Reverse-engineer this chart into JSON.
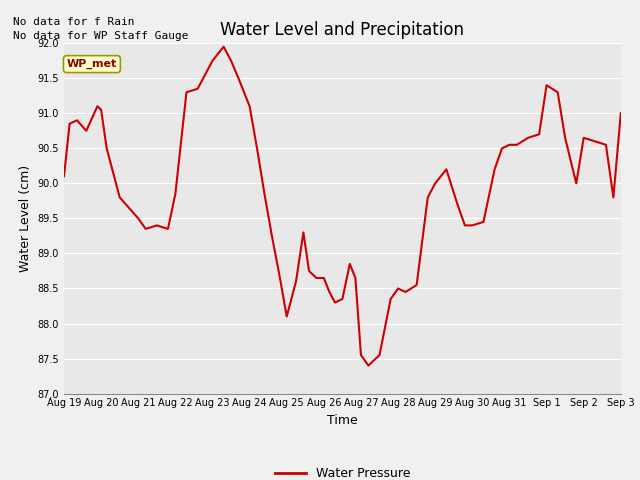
{
  "title": "Water Level and Precipitation",
  "xlabel": "Time",
  "ylabel": "Water Level (cm)",
  "ylim": [
    87.0,
    92.0
  ],
  "yticks": [
    87.0,
    87.5,
    88.0,
    88.5,
    89.0,
    89.5,
    90.0,
    90.5,
    91.0,
    91.5,
    92.0
  ],
  "fig_bg": "#f0f0f0",
  "axes_bg": "#e8e8e8",
  "line_color": "#cc0000",
  "line_width": 1.5,
  "annotation_text1": "No data for f Rain",
  "annotation_text2": "No data for WP Staff Gauge",
  "wpmet_label": "WP_met",
  "legend_label": "Water Pressure",
  "x_dates": [
    "Aug 19",
    "Aug 20",
    "Aug 21",
    "Aug 22",
    "Aug 23",
    "Aug 24",
    "Aug 25",
    "Aug 26",
    "Aug 27",
    "Aug 28",
    "Aug 29",
    "Aug 30",
    "Aug 31",
    "Sep 1",
    "Sep 2",
    "Sep 3"
  ],
  "key_x": [
    0.0,
    0.15,
    0.35,
    0.6,
    0.9,
    1.0,
    1.15,
    1.5,
    2.0,
    2.2,
    2.5,
    2.8,
    3.0,
    3.3,
    3.6,
    3.8,
    4.0,
    4.15,
    4.3,
    4.5,
    4.7,
    5.0,
    5.2,
    5.4,
    5.6,
    5.8,
    6.0,
    6.25,
    6.45,
    6.6,
    6.8,
    7.0,
    7.15,
    7.3,
    7.5,
    7.7,
    7.85,
    8.0,
    8.2,
    8.5,
    8.8,
    9.0,
    9.2,
    9.5,
    9.8,
    10.0,
    10.3,
    10.6,
    10.8,
    11.0,
    11.3,
    11.6,
    11.8,
    12.0,
    12.2,
    12.5,
    12.8,
    13.0,
    13.3,
    13.5,
    13.8,
    14.0,
    14.3,
    14.6,
    14.8,
    15.0
  ],
  "key_y": [
    90.1,
    90.85,
    90.9,
    90.75,
    91.1,
    91.05,
    90.5,
    89.8,
    89.5,
    89.35,
    89.4,
    89.35,
    89.85,
    91.3,
    91.35,
    91.55,
    91.75,
    91.85,
    91.95,
    91.75,
    91.5,
    91.1,
    90.5,
    89.85,
    89.25,
    88.7,
    88.1,
    88.6,
    89.3,
    88.75,
    88.65,
    88.65,
    88.45,
    88.3,
    88.35,
    88.85,
    88.65,
    87.55,
    87.4,
    87.55,
    88.35,
    88.5,
    88.45,
    88.55,
    89.8,
    90.0,
    90.2,
    89.7,
    89.4,
    89.4,
    89.45,
    90.2,
    90.5,
    90.55,
    90.55,
    90.65,
    90.7,
    91.4,
    91.3,
    90.65,
    90.0,
    90.65,
    90.6,
    90.55,
    89.8,
    91.0
  ]
}
